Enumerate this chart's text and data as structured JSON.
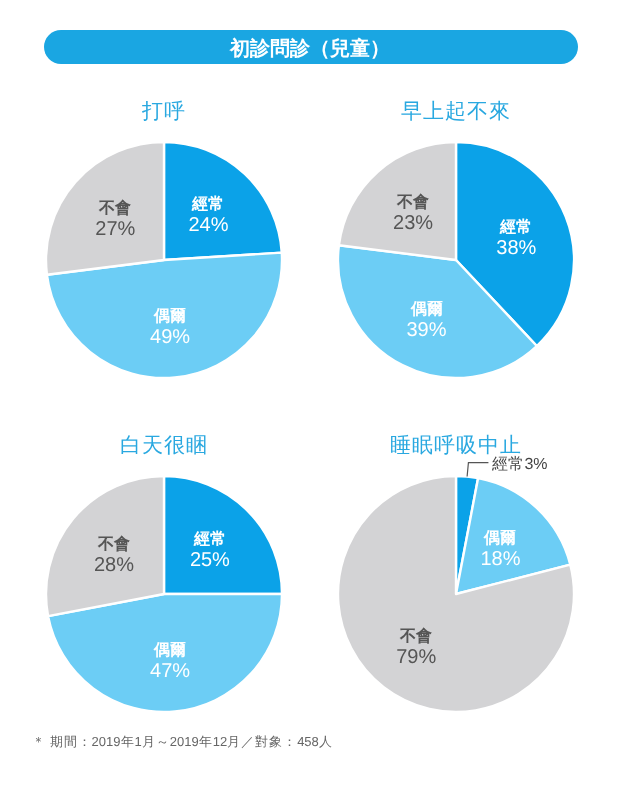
{
  "chart_data": [
    {
      "type": "other",
      "title": "初診問診（兒童）"
    },
    {
      "type": "pie",
      "title": "打呼",
      "categories": [
        "經常",
        "偶爾",
        "不會"
      ],
      "values": [
        24,
        49,
        27
      ],
      "colors": [
        "#0ba2e8",
        "#6ccdf5",
        "#d3d3d5"
      ],
      "value_labels": [
        "24%",
        "49%",
        "27%"
      ]
    },
    {
      "type": "pie",
      "title": "早上起不來",
      "categories": [
        "經常",
        "偶爾",
        "不會"
      ],
      "values": [
        38,
        39,
        23
      ],
      "colors": [
        "#0ba2e8",
        "#6ccdf5",
        "#d3d3d5"
      ],
      "value_labels": [
        "38%",
        "39%",
        "23%"
      ]
    },
    {
      "type": "pie",
      "title": "白天很睏",
      "categories": [
        "經常",
        "偶爾",
        "不會"
      ],
      "values": [
        25,
        47,
        28
      ],
      "colors": [
        "#0ba2e8",
        "#6ccdf5",
        "#d3d3d5"
      ],
      "value_labels": [
        "25%",
        "47%",
        "28%"
      ]
    },
    {
      "type": "pie",
      "title": "睡眠呼吸中止",
      "categories": [
        "經常",
        "偶爾",
        "不會"
      ],
      "values": [
        3,
        18,
        79
      ],
      "colors": [
        "#0ba2e8",
        "#6ccdf5",
        "#d3d3d5"
      ],
      "value_labels": [
        "3%",
        "18%",
        "79%"
      ]
    },
    {
      "type": "other",
      "annotations": [
        "＊ 期間：2019年1月～2019年12月／對象：458人"
      ]
    }
  ]
}
